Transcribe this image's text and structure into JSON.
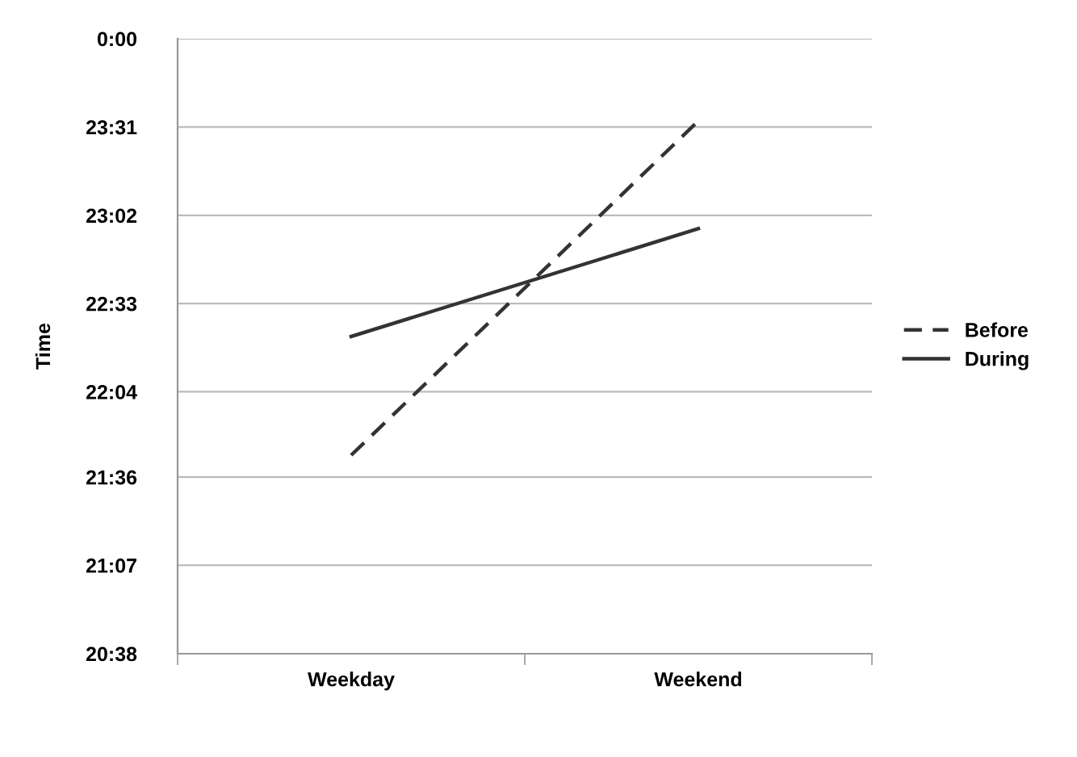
{
  "chart_data": {
    "type": "line",
    "ylabel": "Time",
    "categories": [
      "Weekday",
      "Weekend"
    ],
    "series": [
      {
        "name": "Before",
        "color": "#333333",
        "line_style": "dashed",
        "values": [
          21.72,
          23.55
        ]
      },
      {
        "name": "During",
        "color": "#333333",
        "line_style": "solid",
        "values": [
          22.37,
          22.96
        ]
      }
    ],
    "ylim": [
      20.633,
      24.0
    ],
    "yticks": [
      {
        "value": 20.633,
        "label": "20:38"
      },
      {
        "value": 21.117,
        "label": "21:07"
      },
      {
        "value": 21.6,
        "label": "21:36"
      },
      {
        "value": 22.067,
        "label": "22:04"
      },
      {
        "value": 22.55,
        "label": "22:33"
      },
      {
        "value": 23.033,
        "label": "23:02"
      },
      {
        "value": 23.517,
        "label": "23:31"
      },
      {
        "value": 24.0,
        "label": "0:00"
      }
    ],
    "grid": "y",
    "legend": "right",
    "marker": "none"
  }
}
